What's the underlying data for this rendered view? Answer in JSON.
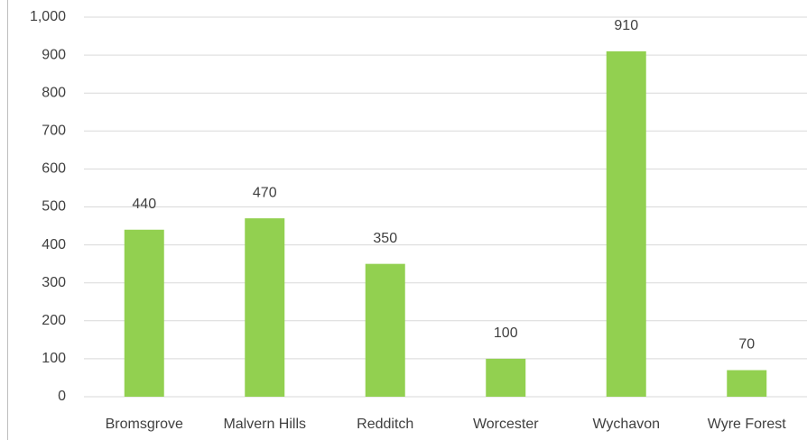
{
  "chart_data": {
    "type": "bar",
    "categories": [
      "Bromsgrove",
      "Malvern Hills",
      "Redditch",
      "Worcester",
      "Wychavon",
      "Wyre Forest"
    ],
    "values": [
      440,
      470,
      350,
      100,
      910,
      70
    ],
    "color": "#92d050",
    "ylim": [
      0,
      1000
    ],
    "yticks": [
      0,
      100,
      200,
      300,
      400,
      500,
      600,
      700,
      800,
      900,
      {
        "value": 1000,
        "label": "1,000"
      }
    ],
    "grid": true
  }
}
